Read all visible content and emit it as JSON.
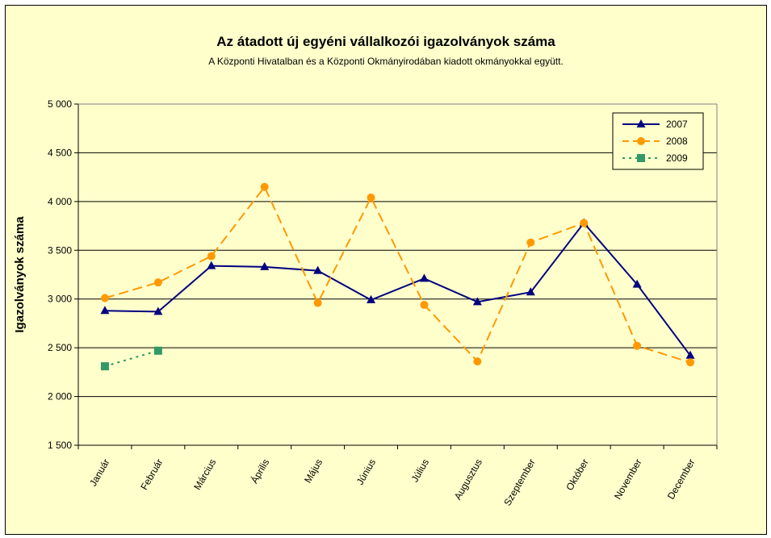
{
  "chart_data": {
    "type": "line",
    "title": "Az átadott új egyéni vállalkozói  igazolványok száma",
    "subtitle": "A Központi Hivatalban és a Központi Okmányirodában kiadott okmányokkal együtt.",
    "xlabel": "",
    "ylabel": "Igazolványok száma",
    "categories": [
      "Január",
      "Február",
      "Március",
      "Április",
      "Május",
      "Június",
      "Július",
      "Augusztus",
      "Szeptember",
      "Október",
      "November",
      "December"
    ],
    "ylim": [
      1500,
      5000
    ],
    "ytick_values": [
      1500,
      2000,
      2500,
      3000,
      3500,
      4000,
      4500,
      5000
    ],
    "ytick_labels": [
      "1 500",
      "2 000",
      "2 500",
      "3 000",
      "3 500",
      "4 000",
      "4 500",
      "5 000"
    ],
    "grid": true,
    "legend_position": "top-right",
    "series": [
      {
        "name": "2007",
        "color": "#000080",
        "marker": "triangle",
        "line_style": "solid",
        "values": [
          2880,
          2870,
          3340,
          3330,
          3290,
          2990,
          3210,
          2970,
          3070,
          3780,
          3150,
          2420
        ]
      },
      {
        "name": "2008",
        "color": "#ff9900",
        "marker": "circle",
        "line_style": "dashed",
        "values": [
          3010,
          3170,
          3440,
          4150,
          2960,
          4040,
          2940,
          2360,
          3580,
          3780,
          2520,
          2350
        ]
      },
      {
        "name": "2009",
        "color": "#339966",
        "marker": "square",
        "line_style": "dotted",
        "values": [
          2310,
          2470,
          null,
          null,
          null,
          null,
          null,
          null,
          null,
          null,
          null,
          null
        ]
      }
    ]
  }
}
